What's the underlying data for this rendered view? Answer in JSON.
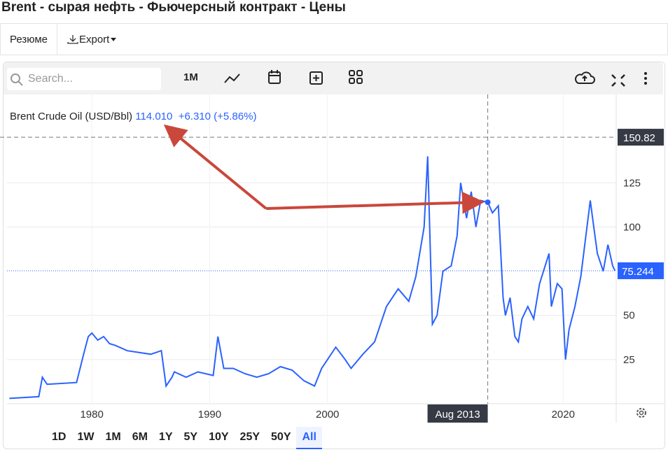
{
  "header": {
    "title": "Brent - сырая нефть - Фьючерсный контракт - Цены"
  },
  "tabs": [
    "Резюме",
    "Export"
  ],
  "toolbar": {
    "search": "Search...",
    "interval": "1M"
  },
  "legend": {
    "name": "Brent Crude Oil (USD/Bbl)",
    "price": {
      "value": 114.01,
      "label": "114.010"
    },
    "change": "+6.310 (+5.86%)"
  },
  "range_buttons": [
    "1D",
    "1W",
    "1M",
    "6M",
    "1Y",
    "5Y",
    "10Y",
    "25Y",
    "50Y",
    "All"
  ],
  "chart_data": {
    "type": "line",
    "x": [
      1973.0,
      1975.5,
      1975.8,
      1976.2,
      1978.7,
      1979.3,
      1979.7,
      1980.0,
      1980.5,
      1981.0,
      1981.5,
      1982.0,
      1983.0,
      1984.0,
      1985.0,
      1985.9,
      1986.3,
      1986.8,
      1987.0,
      1988.0,
      1989.0,
      1990.3,
      1990.7,
      1991.2,
      1992.0,
      1993.0,
      1994.0,
      1995.0,
      1996.0,
      1997.0,
      1998.0,
      1998.9,
      1999.5,
      2000.0,
      2000.7,
      2001.5,
      2002.0,
      2003.0,
      2004.0,
      2005.0,
      2006.0,
      2006.9,
      2007.5,
      2008.2,
      2008.5,
      2008.9,
      2009.3,
      2009.8,
      2010.5,
      2011.0,
      2011.3,
      2011.8,
      2012.2,
      2012.6,
      2013.0,
      2013.6,
      2014.0,
      2014.5,
      2014.9,
      2015.1,
      2015.5,
      2015.9,
      2016.2,
      2016.5,
      2017.0,
      2017.5,
      2018.0,
      2018.8,
      2019.0,
      2019.5,
      2019.9,
      2020.2,
      2020.5,
      2021.0,
      2021.5,
      2022.3,
      2022.5,
      2022.9,
      2023.4,
      2023.8,
      2024.2,
      2024.4
    ],
    "series": [
      {
        "name": "Brent Crude Oil (USD/Bbl)",
        "color": "#2962ff",
        "values": [
          3,
          4,
          15,
          11,
          12,
          28,
          38,
          40,
          36,
          38,
          34,
          33,
          30,
          29,
          28,
          30,
          10,
          15,
          18,
          15,
          18,
          16,
          38,
          20,
          20,
          17,
          15,
          17,
          21,
          19,
          13,
          10,
          20,
          25,
          32,
          25,
          20,
          28,
          35,
          55,
          65,
          58,
          72,
          100,
          140,
          45,
          50,
          75,
          78,
          95,
          125,
          105,
          120,
          100,
          115,
          114,
          108,
          112,
          60,
          50,
          60,
          38,
          35,
          48,
          55,
          48,
          68,
          85,
          55,
          68,
          65,
          25,
          42,
          55,
          72,
          115,
          105,
          85,
          75,
          90,
          78,
          75.244
        ]
      }
    ],
    "xlim": [
      1972.8,
      2024.5
    ],
    "ylim": [
      0,
      175
    ],
    "xticks": [
      1980,
      1990,
      2000,
      2020
    ],
    "yticks": [
      25,
      50,
      100,
      125
    ],
    "grid": true,
    "crosshair_y": 150.82,
    "crosshair_x": {
      "value": 2013.6,
      "label": "Aug 2013"
    },
    "last_value": 75.244
  }
}
